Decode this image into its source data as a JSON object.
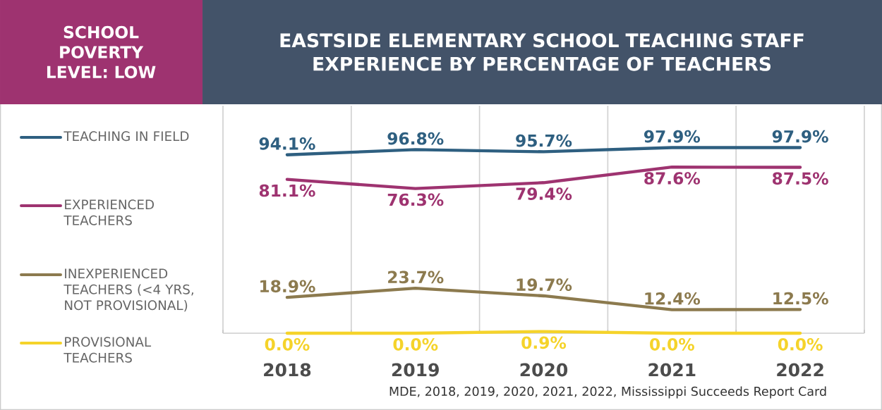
{
  "chart_data": {
    "type": "line",
    "title": "EASTSIDE ELEMENTARY SCHOOL TEACHING STAFF EXPERIENCE BY PERCENTAGE OF TEACHERS",
    "subtitle": "SCHOOL POVERTY LEVEL: LOW",
    "annotations": [
      "MDE, 2018, 2019, 2020, 2021, 2022, Mississippi Succeeds Report Card"
    ],
    "categories": [
      "2018",
      "2019",
      "2020",
      "2021",
      "2022"
    ],
    "series": [
      {
        "name": "TEACHING IN FIELD",
        "color": "#2e5f80",
        "values": [
          94.1,
          96.8,
          95.7,
          97.9,
          97.9
        ],
        "value_labels": [
          "94.1%",
          "96.8%",
          "95.7%",
          "97.9%",
          "97.9%"
        ]
      },
      {
        "name": "EXPERIENCED TEACHERS",
        "color": "#9e3370",
        "values": [
          81.1,
          76.3,
          79.4,
          87.6,
          87.5
        ],
        "value_labels": [
          "81.1%",
          "76.3%",
          "79.4%",
          "87.6%",
          "87.5%"
        ]
      },
      {
        "name": "INEXPERIENCED TEACHERS (<4 YRS, NOT PROVISIONAL)",
        "color": "#8c7a4e",
        "values": [
          18.9,
          23.7,
          19.7,
          12.4,
          12.5
        ],
        "value_labels": [
          "18.9%",
          "23.7%",
          "19.7%",
          "12.4%",
          "12.5%"
        ]
      },
      {
        "name": "PROVISIONAL TEACHERS",
        "color": "#f5d32a",
        "values": [
          0.0,
          0.0,
          0.9,
          0.0,
          0.0
        ],
        "value_labels": [
          "0.0%",
          "0.0%",
          "0.9%",
          "0.0%",
          "0.0%"
        ]
      }
    ],
    "ylim": [
      0,
      120
    ],
    "tick_labels": "x",
    "grid": "x",
    "legend": "left",
    "marker": "none",
    "line_style": "solid"
  }
}
